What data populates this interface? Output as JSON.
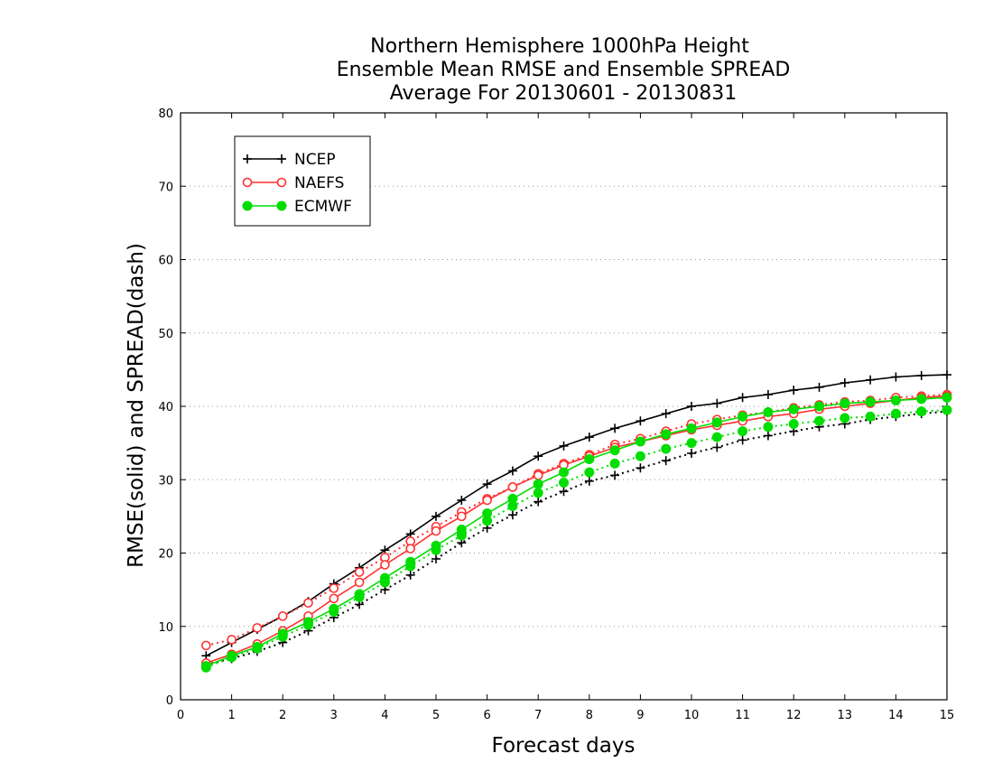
{
  "chart_data": {
    "type": "line",
    "title": [
      "Northern Hemisphere 1000hPa Height",
      "Ensemble Mean RMSE and Ensemble SPREAD",
      "Average For 20130601 - 20130831"
    ],
    "xlabel": "Forecast days",
    "ylabel": "RMSE(solid) and SPREAD(dash)",
    "xlim": [
      0,
      15
    ],
    "ylim": [
      0,
      80
    ],
    "x_ticks": [
      "0",
      "1",
      "2",
      "3",
      "4",
      "5",
      "6",
      "7",
      "8",
      "9",
      "10",
      "11",
      "12",
      "13",
      "14",
      "15"
    ],
    "y_ticks": [
      "0",
      "10",
      "20",
      "30",
      "40",
      "50",
      "60",
      "70",
      "80"
    ],
    "grid": "horizontal dotted",
    "legend_position": "top-left",
    "x": [
      0.5,
      1,
      1.5,
      2,
      2.5,
      3,
      3.5,
      4,
      4.5,
      5,
      5.5,
      6,
      6.5,
      7,
      7.5,
      8,
      8.5,
      9,
      9.5,
      10,
      10.5,
      11,
      11.5,
      12,
      12.5,
      13,
      13.5,
      14,
      14.5,
      15
    ],
    "series": [
      {
        "name": "NCEP",
        "color": "#000000",
        "marker": "plus",
        "rmse": [
          6.0,
          7.8,
          9.6,
          11.4,
          13.4,
          15.8,
          18.0,
          20.4,
          22.6,
          25.0,
          27.2,
          29.4,
          31.2,
          33.2,
          34.6,
          35.8,
          37.0,
          38.0,
          39.0,
          40.0,
          40.4,
          41.2,
          41.6,
          42.2,
          42.6,
          43.2,
          43.6,
          44.0,
          44.2,
          44.3
        ],
        "spread": [
          4.8,
          5.6,
          6.6,
          7.8,
          9.4,
          11.2,
          13.0,
          15.0,
          17.0,
          19.2,
          21.4,
          23.4,
          25.2,
          27.0,
          28.4,
          29.8,
          30.6,
          31.6,
          32.6,
          33.6,
          34.4,
          35.4,
          36.0,
          36.6,
          37.2,
          37.6,
          38.2,
          38.6,
          39.0,
          39.3
        ]
      },
      {
        "name": "NAEFS",
        "color": "#ff3030",
        "marker": "open-circle",
        "rmse": [
          5.0,
          6.2,
          7.6,
          9.4,
          11.4,
          13.8,
          16.0,
          18.4,
          20.6,
          23.0,
          25.0,
          27.2,
          29.0,
          30.6,
          32.0,
          33.2,
          34.4,
          35.2,
          36.0,
          36.8,
          37.4,
          38.0,
          38.6,
          39.0,
          39.6,
          40.0,
          40.4,
          40.8,
          41.2,
          41.4
        ],
        "spread": [
          7.4,
          8.2,
          9.8,
          11.4,
          13.2,
          15.2,
          17.4,
          19.4,
          21.6,
          23.6,
          25.6,
          27.4,
          29.0,
          30.8,
          32.2,
          33.4,
          34.8,
          35.6,
          36.6,
          37.6,
          38.2,
          38.8,
          39.2,
          39.8,
          40.2,
          40.6,
          40.8,
          41.2,
          41.4,
          41.6
        ]
      },
      {
        "name": "ECMWF",
        "color": "#00dd00",
        "marker": "filled-circle",
        "rmse": [
          4.6,
          6.0,
          7.2,
          9.0,
          10.6,
          12.4,
          14.4,
          16.6,
          18.8,
          21.0,
          23.2,
          25.4,
          27.4,
          29.4,
          31.0,
          32.8,
          34.0,
          35.2,
          36.2,
          37.0,
          37.8,
          38.6,
          39.2,
          39.6,
          40.0,
          40.4,
          40.6,
          40.8,
          41.0,
          41.2
        ],
        "spread": [
          4.4,
          5.8,
          7.0,
          8.6,
          10.2,
          12.0,
          14.0,
          16.0,
          18.2,
          20.4,
          22.4,
          24.4,
          26.4,
          28.2,
          29.6,
          31.0,
          32.2,
          33.2,
          34.2,
          35.0,
          35.8,
          36.6,
          37.2,
          37.6,
          38.0,
          38.4,
          38.6,
          39.0,
          39.3,
          39.5
        ]
      }
    ]
  }
}
